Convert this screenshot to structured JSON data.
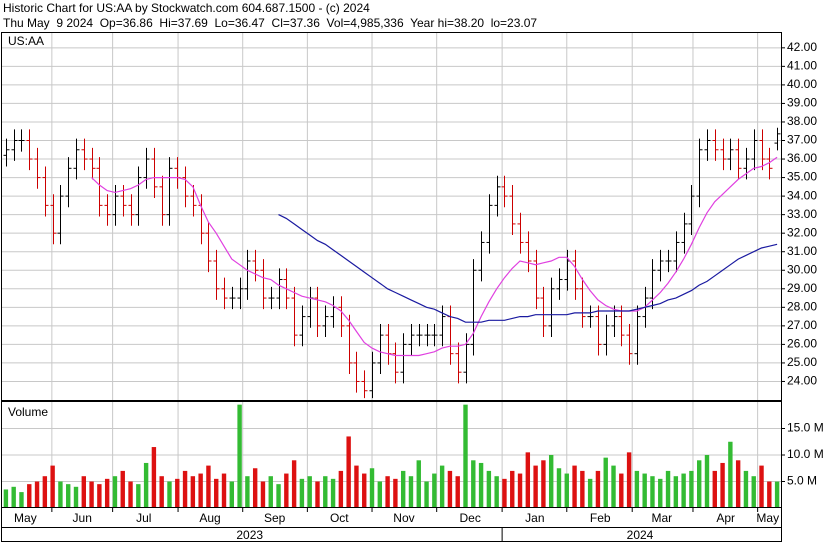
{
  "header": {
    "line1": "Historic Chart for US:AA by Stockwatch.com 604.687.1500 - (c) 2024",
    "line2": "Thu May  9 2024  Op=36.86  Hi=37.69  Lo=36.47  Cl=37.36  Vol=4,985,336  Year hi=38.20  lo=23.07"
  },
  "chart_data": [
    {
      "type": "ohlc",
      "label": "US:AA",
      "xlim": [
        -0.5,
        99.5
      ],
      "ylim": [
        23,
        42.8
      ],
      "grid": true,
      "up_color": "#000000",
      "down_color": "#cc0000",
      "xgrid": [
        5.9,
        13.7,
        22.1,
        30.4,
        38.7,
        47.0,
        55.3,
        63.7,
        72.0,
        80.4,
        88.2,
        96.5
      ],
      "yticks": [
        {
          "value": 24,
          "label": "24.00"
        },
        {
          "value": 25,
          "label": "25.00"
        },
        {
          "value": 26,
          "label": "26.00"
        },
        {
          "value": 27,
          "label": "27.00"
        },
        {
          "value": 28,
          "label": "28.00"
        },
        {
          "value": 29,
          "label": "29.00"
        },
        {
          "value": 30,
          "label": "30.00"
        },
        {
          "value": 31,
          "label": "31.00"
        },
        {
          "value": 32,
          "label": "32.00"
        },
        {
          "value": 33,
          "label": "33.00"
        },
        {
          "value": 34,
          "label": "34.00"
        },
        {
          "value": 35,
          "label": "35.00"
        },
        {
          "value": 36,
          "label": "36.00"
        },
        {
          "value": 37,
          "label": "37.00"
        },
        {
          "value": 38,
          "label": "38.00"
        },
        {
          "value": 39,
          "label": "39.00"
        },
        {
          "value": 40,
          "label": "40.00"
        },
        {
          "value": 41,
          "label": "41.00"
        },
        {
          "value": 42,
          "label": "42.00"
        }
      ],
      "open": [
        36.2,
        36.5,
        37,
        37,
        36,
        35,
        33.5,
        32,
        34,
        35.5,
        36.5,
        36,
        35.5,
        33.5,
        33,
        34,
        33.5,
        33,
        35,
        36,
        34.5,
        33,
        35.5,
        35,
        34,
        33.5,
        32,
        30.5,
        29,
        28.5,
        28.5,
        29,
        30.5,
        30,
        28.5,
        28.5,
        29.5,
        28.5,
        26.5,
        27.5,
        28.5,
        27,
        27.5,
        28,
        27,
        25,
        24,
        23.5,
        25,
        26.5,
        25.5,
        24.5,
        26,
        26.5,
        26.5,
        26.5,
        26.5,
        27.5,
        25.5,
        24.5,
        26,
        30,
        31.5,
        33.5,
        34.5,
        34,
        32.5,
        31.5,
        30.5,
        28.5,
        27,
        29,
        29.5,
        30.5,
        29,
        27.5,
        27.5,
        26,
        27,
        27.5,
        26.5,
        25.5,
        27.5,
        28.5,
        30,
        30.5,
        30.5,
        31.5,
        32.5,
        34,
        36.5,
        37,
        36.5,
        36,
        36.5,
        35.5,
        36,
        37,
        36,
        36.86
      ],
      "high": [
        37.1,
        37.6,
        37.6,
        37.6,
        36.6,
        35.6,
        34.1,
        34.6,
        36.1,
        37.1,
        37.1,
        36.6,
        36.1,
        34.1,
        34.6,
        34.6,
        34.1,
        35.6,
        36.6,
        36.6,
        35.1,
        36.1,
        36.1,
        35.6,
        34.6,
        34.1,
        32.6,
        31.1,
        29.6,
        29.1,
        29.6,
        31.1,
        31.1,
        30.6,
        29.1,
        30.1,
        30.1,
        29.1,
        28.1,
        29.1,
        29.1,
        28.1,
        28.6,
        28.6,
        27.6,
        25.6,
        24.6,
        25.6,
        27.1,
        27.1,
        26.1,
        26.6,
        27.1,
        27.1,
        27.1,
        27.1,
        28.1,
        28.1,
        26.1,
        26.6,
        30.6,
        32.1,
        34.1,
        35.1,
        35.1,
        34.6,
        33.1,
        32.1,
        31.1,
        29.1,
        29.6,
        30.1,
        31.1,
        31.1,
        29.6,
        28.1,
        28.1,
        27.6,
        28.1,
        28.1,
        27.1,
        28.1,
        29.1,
        30.6,
        31.1,
        31.1,
        32.1,
        33.1,
        34.6,
        37.1,
        37.6,
        37.6,
        37.1,
        37.1,
        37.1,
        36.6,
        37.6,
        37.6,
        36.6,
        37.69
      ],
      "low": [
        35.6,
        35.9,
        36.4,
        35.4,
        34.4,
        32.9,
        31.4,
        31.4,
        33.4,
        34.9,
        35.4,
        34.9,
        32.9,
        32.4,
        32.4,
        32.9,
        32.4,
        32.4,
        34.4,
        33.9,
        32.4,
        32.4,
        34.4,
        33.4,
        32.9,
        31.4,
        29.9,
        28.4,
        27.9,
        27.9,
        27.9,
        28.4,
        29.4,
        27.9,
        27.9,
        27.9,
        27.9,
        25.9,
        25.9,
        26.9,
        26.4,
        26.4,
        26.9,
        26.4,
        24.4,
        23.4,
        23.1,
        23.1,
        24.4,
        24.9,
        23.9,
        23.9,
        25.4,
        25.9,
        25.9,
        25.9,
        25.9,
        24.9,
        23.9,
        23.9,
        25.4,
        29.4,
        30.9,
        32.9,
        33.4,
        31.9,
        30.9,
        29.9,
        27.9,
        26.4,
        26.4,
        28.4,
        28.9,
        28.4,
        26.9,
        26.9,
        25.4,
        25.4,
        26.4,
        25.9,
        24.9,
        24.9,
        26.9,
        27.9,
        29.4,
        29.9,
        29.9,
        30.9,
        31.9,
        33.4,
        35.9,
        35.9,
        35.4,
        35.4,
        34.9,
        34.9,
        35.4,
        35.4,
        34.9,
        36.47
      ],
      "close": [
        36.5,
        37,
        37,
        36,
        35,
        33.5,
        32,
        34,
        35.5,
        36.5,
        36,
        35.5,
        33.5,
        33,
        34,
        33.5,
        33,
        35,
        36,
        34.5,
        33,
        35.5,
        35,
        34,
        33.5,
        32,
        30.5,
        29,
        28.5,
        28.5,
        29,
        30.5,
        30,
        28.5,
        28.5,
        29.5,
        28.5,
        26.5,
        27.5,
        28.5,
        27,
        27.5,
        28,
        27,
        25,
        24,
        23.5,
        25,
        26.5,
        25.5,
        24.5,
        26,
        26.5,
        26.5,
        26.5,
        26.5,
        27.5,
        25.5,
        24.5,
        26,
        30,
        31.5,
        33.5,
        34.5,
        34,
        32.5,
        31.5,
        30.5,
        28.5,
        27,
        29,
        29.5,
        30.5,
        29,
        27.5,
        27.5,
        26,
        27,
        27.5,
        26.5,
        25.5,
        27.5,
        28.5,
        30,
        30.5,
        30.5,
        31.5,
        32.5,
        34,
        36.5,
        37,
        36.5,
        36,
        36.5,
        35.5,
        36,
        37,
        36,
        35.5,
        37.36
      ],
      "lines": [
        {
          "color": "#e040e0",
          "values": [
            null,
            null,
            null,
            null,
            null,
            null,
            null,
            null,
            null,
            null,
            null,
            35,
            34.6,
            34.3,
            34.2,
            34.3,
            34.4,
            34.6,
            34.9,
            35.0,
            35.0,
            35.0,
            35.0,
            34.9,
            34.5,
            33.5,
            32.6,
            32,
            31.3,
            30.6,
            30.3,
            30.0,
            29.8,
            29.6,
            29.5,
            29.2,
            29.0,
            28.8,
            28.6,
            28.5,
            28.4,
            28.3,
            28.1,
            27.8,
            27.3,
            26.7,
            26.1,
            25.8,
            25.6,
            25.5,
            25.4,
            25.4,
            25.4,
            25.4,
            25.5,
            25.6,
            25.8,
            25.9,
            25.9,
            26.0,
            26.6,
            27.5,
            28.3,
            29,
            29.6,
            30.1,
            30.5,
            30.4,
            30.3,
            30.4,
            30.5,
            30.7,
            30.7,
            30.2,
            29.5,
            28.9,
            28.4,
            28.1,
            27.9,
            27.8,
            27.8,
            27.8,
            28.0,
            28.4,
            28.8,
            29.3,
            29.9,
            30.6,
            31.4,
            32.3,
            33.1,
            33.7,
            34.1,
            34.5,
            34.9,
            35.2,
            35.5,
            35.6,
            35.8,
            36.1
          ]
        },
        {
          "color": "#1a1aa0",
          "values": [
            null,
            null,
            null,
            null,
            null,
            null,
            null,
            null,
            null,
            null,
            null,
            null,
            null,
            null,
            null,
            null,
            null,
            null,
            null,
            null,
            null,
            null,
            null,
            null,
            null,
            null,
            null,
            null,
            null,
            null,
            null,
            null,
            null,
            null,
            null,
            33.0,
            32.8,
            32.5,
            32.2,
            31.9,
            31.6,
            31.4,
            31.1,
            30.8,
            30.5,
            30.2,
            29.9,
            29.6,
            29.3,
            29.0,
            28.8,
            28.6,
            28.4,
            28.2,
            28.0,
            27.9,
            27.7,
            27.5,
            27.4,
            27.2,
            27.2,
            27.2,
            27.3,
            27.3,
            27.3,
            27.4,
            27.5,
            27.5,
            27.6,
            27.6,
            27.6,
            27.6,
            27.6,
            27.7,
            27.7,
            27.7,
            27.8,
            27.8,
            27.8,
            27.8,
            27.8,
            27.9,
            28.0,
            28.1,
            28.2,
            28.4,
            28.5,
            28.7,
            28.9,
            29.2,
            29.4,
            29.7,
            30.0,
            30.3,
            30.6,
            30.8,
            31.0,
            31.2,
            31.3,
            31.4
          ]
        }
      ]
    },
    {
      "type": "bar",
      "label": "Volume",
      "xlim": [
        -0.5,
        99.5
      ],
      "ylim": [
        0,
        20
      ],
      "grid": true,
      "up_color": "#33bb33",
      "down_color": "#dd1111",
      "yticks": [
        {
          "value": 5,
          "label": "5.0 M"
        },
        {
          "value": 10,
          "label": "10.0 M"
        },
        {
          "value": 15,
          "label": "15.0 M"
        }
      ],
      "xticks": [
        {
          "value": 2.5,
          "label": "May"
        },
        {
          "value": 9.8,
          "label": "Jun"
        },
        {
          "value": 17.7,
          "label": "Jul"
        },
        {
          "value": 26.2,
          "label": "Aug"
        },
        {
          "value": 34.5,
          "label": "Sep"
        },
        {
          "value": 42.8,
          "label": "Oct"
        },
        {
          "value": 51.1,
          "label": "Nov"
        },
        {
          "value": 59.6,
          "label": "Dec"
        },
        {
          "value": 67.9,
          "label": "Jan"
        },
        {
          "value": 76.3,
          "label": "Feb"
        },
        {
          "value": 84.2,
          "label": "Mar"
        },
        {
          "value": 92.4,
          "label": "Apr"
        },
        {
          "value": 97.8,
          "label": "May"
        }
      ],
      "years": [
        {
          "value": 31.3,
          "label": "2023"
        },
        {
          "value": 81.4,
          "label": "2024"
        }
      ],
      "year_bounds": [
        63.7
      ],
      "values": [
        3.5,
        4,
        3,
        4.5,
        5,
        6,
        8,
        5,
        4.5,
        4,
        6,
        5,
        4.5,
        5.5,
        6,
        7,
        5,
        4.5,
        8.5,
        11.5,
        6,
        5,
        5.5,
        7,
        6,
        6.5,
        8,
        5.5,
        6.5,
        5,
        19.5,
        6,
        7.5,
        5,
        6,
        4.5,
        6.5,
        9,
        5.5,
        6,
        5,
        6,
        5.5,
        7,
        13.5,
        8,
        6.5,
        7.5,
        5,
        6,
        5.5,
        7,
        6,
        9,
        5,
        6.5,
        8,
        7,
        6,
        19.5,
        9,
        8.5,
        7,
        6,
        5.5,
        7,
        6.5,
        10.5,
        8,
        9,
        10,
        7.5,
        6.5,
        8,
        7,
        5.5,
        7,
        9.5,
        8,
        6.5,
        10.5,
        7,
        6.5,
        6,
        5.5,
        7,
        6,
        6.5,
        7,
        9,
        10,
        7,
        8.5,
        12.5,
        9,
        7,
        6,
        8,
        5,
        4.985336
      ]
    }
  ]
}
